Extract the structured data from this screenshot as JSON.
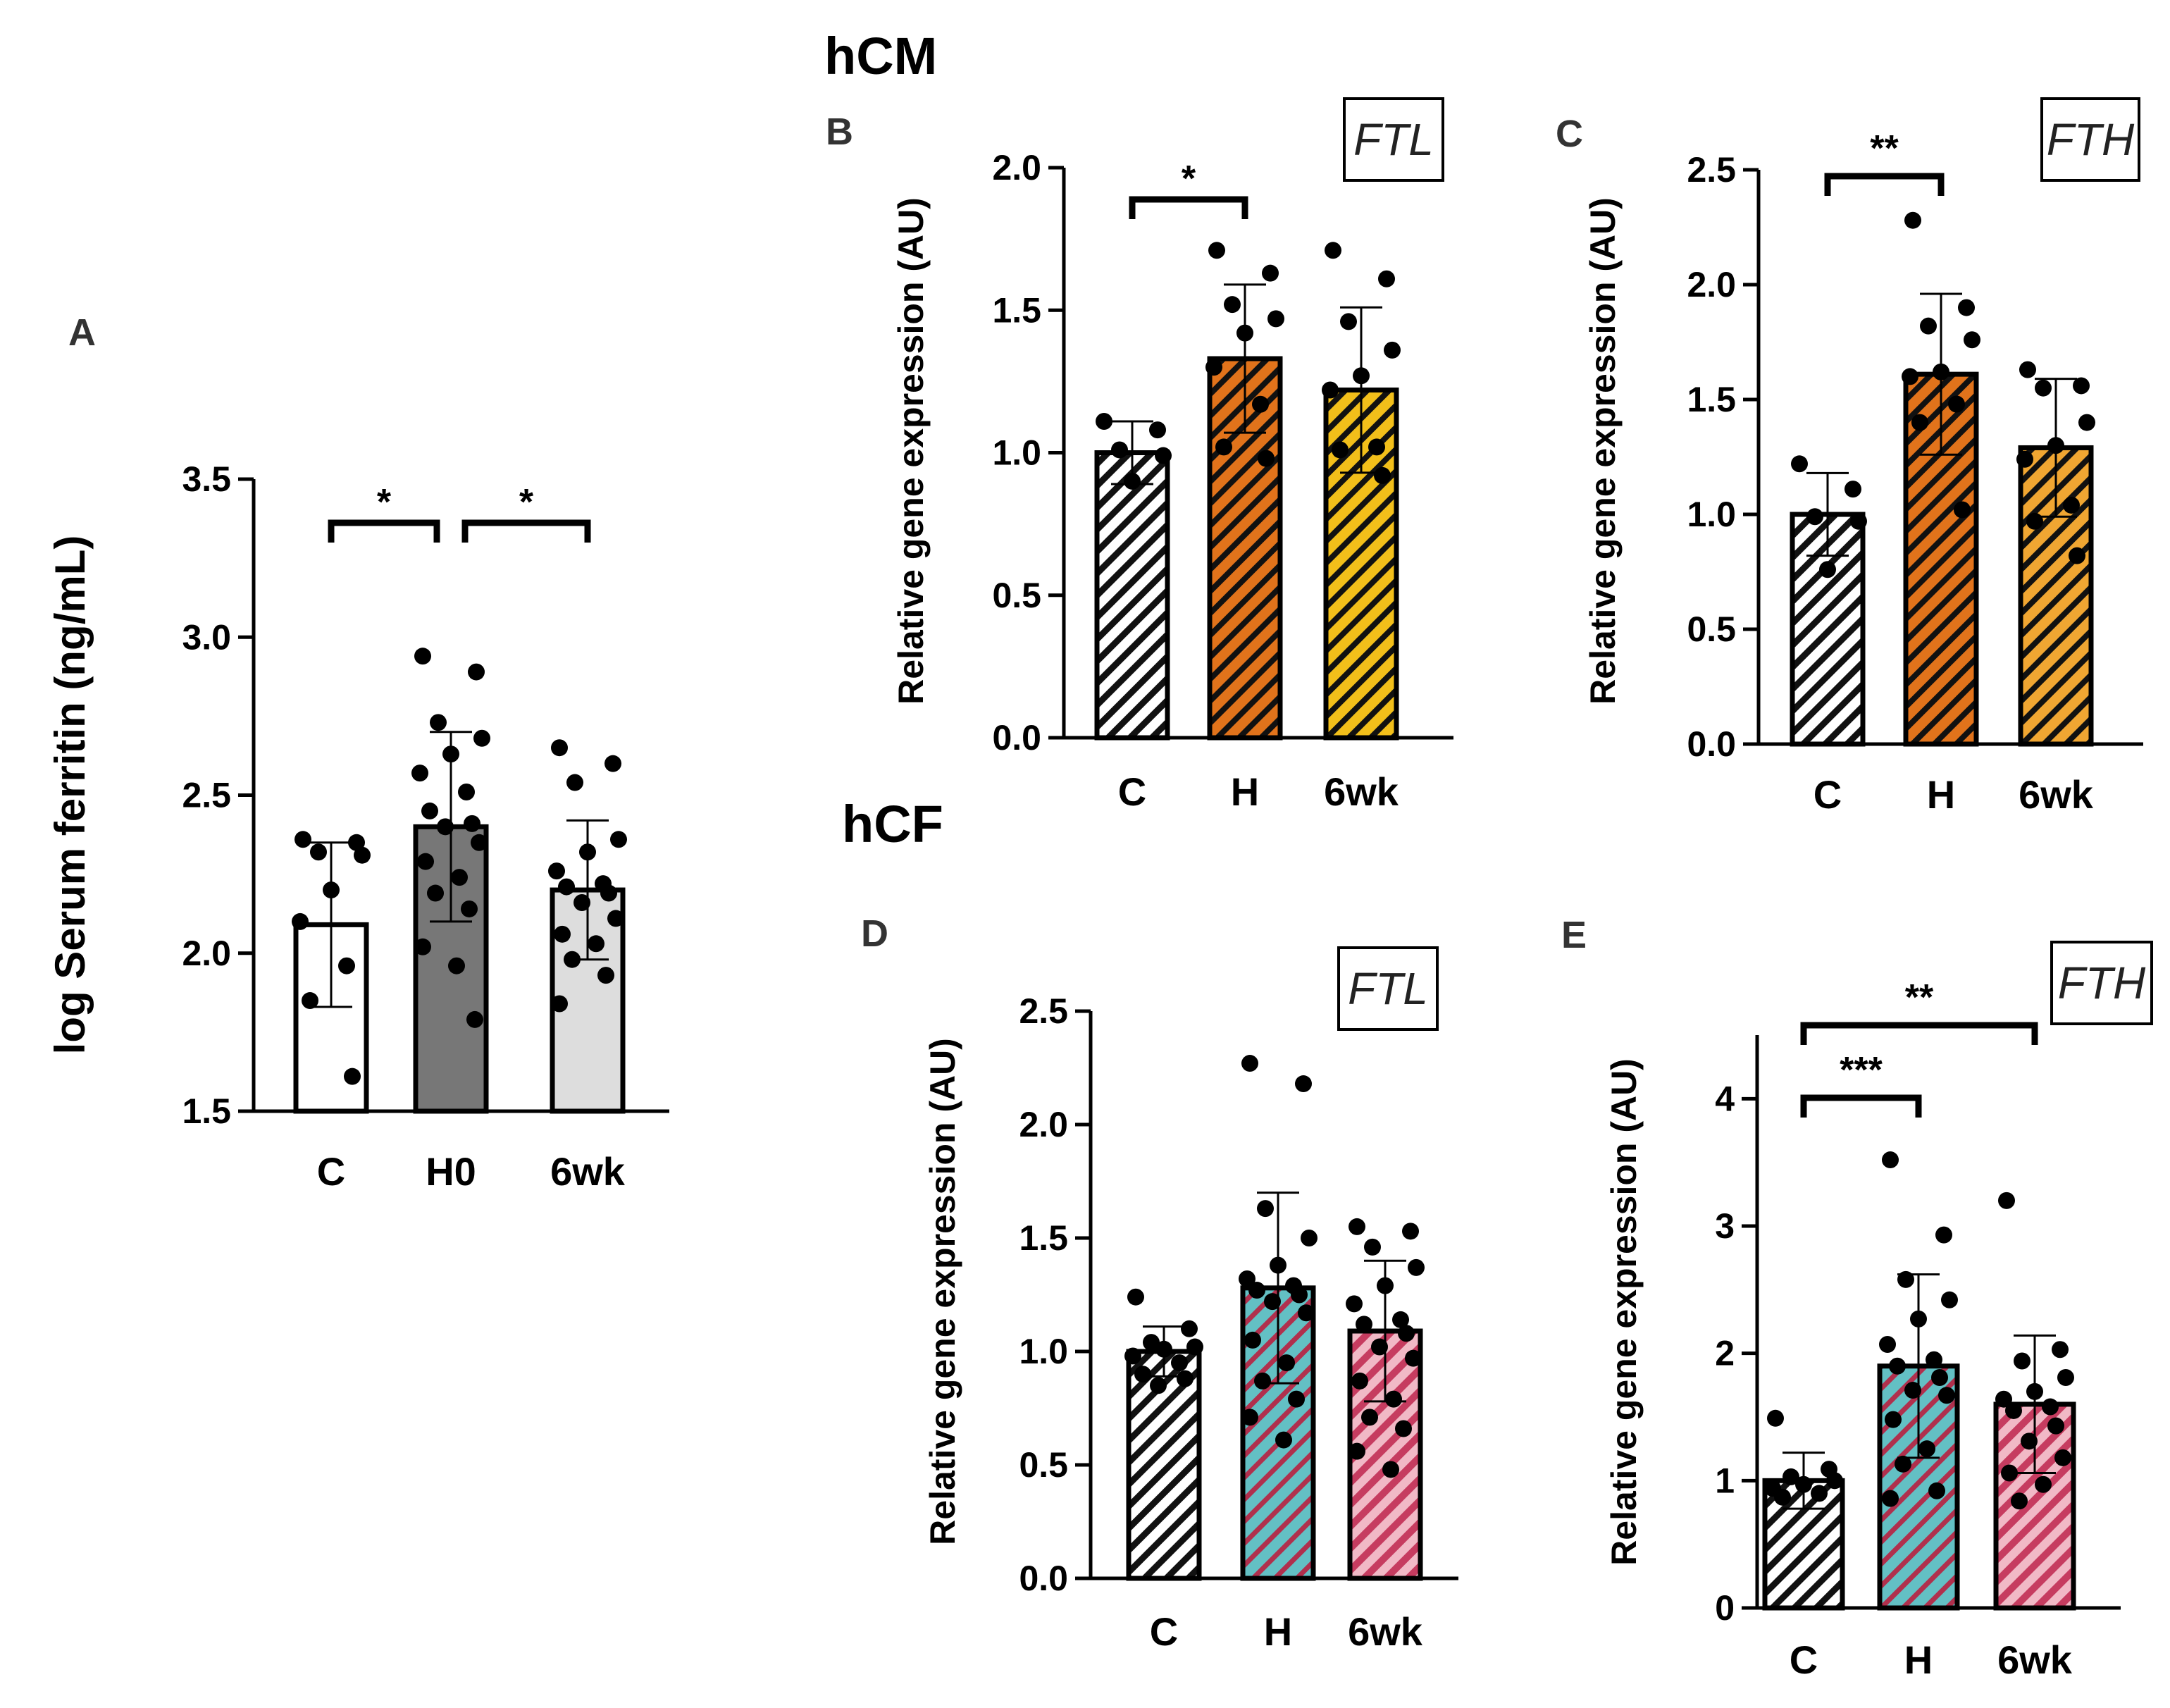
{
  "figure": {
    "group_labels": {
      "hcm": "hCM",
      "hcf": "hCF"
    },
    "colors": {
      "white_bar": "#ffffff",
      "gray_bar": "#777777",
      "lightgray_bar": "#dddddd",
      "hatch_white": "#ffffff",
      "orange": "#e1731b",
      "yellow": "#f2bf1a",
      "teal": "#63c0c4",
      "pink": "#d9557a",
      "black": "#000000"
    }
  },
  "chart_data": [
    {
      "panel": "A",
      "type": "bar",
      "gene": "",
      "title": "",
      "xlabel": "",
      "ylabel": "log Serum ferritin (ng/mL)",
      "categories": [
        "C",
        "H0",
        "6wk"
      ],
      "values": [
        2.09,
        2.4,
        2.2
      ],
      "sd": [
        0.26,
        0.3,
        0.22
      ],
      "ylim": [
        1.5,
        3.5
      ],
      "yticks": [
        1.5,
        2.0,
        2.5,
        3.0,
        3.5
      ],
      "ytick_labels": [
        "1.5",
        "2.0",
        "2.5",
        "3.0",
        "3.5"
      ],
      "grid": false,
      "fills": [
        "white",
        "gray",
        "lightgray"
      ],
      "points": [
        [
          2.36,
          2.35,
          2.32,
          2.31,
          2.2,
          2.1,
          1.96,
          1.85,
          1.61
        ],
        [
          2.94,
          2.89,
          2.73,
          2.68,
          2.63,
          2.57,
          2.51,
          2.45,
          2.41,
          2.4,
          2.35,
          2.29,
          2.24,
          2.19,
          2.14,
          2.02,
          1.96,
          1.79
        ],
        [
          2.65,
          2.6,
          2.54,
          2.36,
          2.32,
          2.26,
          2.22,
          2.21,
          2.19,
          2.16,
          2.11,
          2.06,
          2.03,
          1.98,
          1.93,
          1.84
        ]
      ],
      "significance": [
        {
          "from": 0,
          "to": 1,
          "label": "*"
        },
        {
          "from": 1,
          "to": 2,
          "label": "*"
        }
      ]
    },
    {
      "panel": "B",
      "type": "bar",
      "gene": "FTL",
      "title": "",
      "xlabel": "",
      "ylabel": "Relative gene expression (AU)",
      "categories": [
        "C",
        "H",
        "6wk"
      ],
      "values": [
        1.0,
        1.33,
        1.22
      ],
      "sd": [
        0.11,
        0.26,
        0.29
      ],
      "ylim": [
        0.0,
        2.0
      ],
      "yticks": [
        0.0,
        0.5,
        1.0,
        1.5,
        2.0
      ],
      "ytick_labels": [
        "0.0",
        "0.5",
        "1.0",
        "1.5",
        "2.0"
      ],
      "grid": false,
      "fills": [
        "white",
        "orange",
        "yellow"
      ],
      "points": [
        [
          1.11,
          1.08,
          1.01,
          0.99,
          0.9
        ],
        [
          1.71,
          1.63,
          1.52,
          1.47,
          1.42,
          1.3,
          1.17,
          1.02,
          0.98
        ],
        [
          1.71,
          1.61,
          1.46,
          1.36,
          1.27,
          1.22,
          1.02,
          1.01,
          0.92
        ]
      ],
      "significance": [
        {
          "from": 0,
          "to": 1,
          "label": "*"
        }
      ]
    },
    {
      "panel": "C",
      "type": "bar",
      "gene": "FTH",
      "title": "",
      "xlabel": "",
      "ylabel": "Relative gene expression (AU)",
      "categories": [
        "C",
        "H",
        "6wk"
      ],
      "values": [
        1.0,
        1.61,
        1.29
      ],
      "sd": [
        0.18,
        0.35,
        0.3
      ],
      "ylim": [
        0.0,
        2.5
      ],
      "yticks": [
        0.0,
        0.5,
        1.0,
        1.5,
        2.0,
        2.5
      ],
      "ytick_labels": [
        "0.0",
        "0.5",
        "1.0",
        "1.5",
        "2.0",
        "2.5"
      ],
      "grid": false,
      "fills": [
        "white",
        "orange",
        "orange-light"
      ],
      "points": [
        [
          1.22,
          1.11,
          0.99,
          0.97,
          0.76
        ],
        [
          2.28,
          1.9,
          1.82,
          1.76,
          1.62,
          1.6,
          1.48,
          1.4,
          1.02
        ],
        [
          1.63,
          1.56,
          1.55,
          1.4,
          1.3,
          1.24,
          1.04,
          0.97,
          0.82
        ]
      ],
      "significance": [
        {
          "from": 0,
          "to": 1,
          "label": "**"
        }
      ]
    },
    {
      "panel": "D",
      "type": "bar",
      "gene": "FTL",
      "title": "",
      "xlabel": "",
      "ylabel": "Relative gene expression (AU)",
      "categories": [
        "C",
        "H",
        "6wk"
      ],
      "values": [
        1.0,
        1.28,
        1.09
      ],
      "sd": [
        0.11,
        0.42,
        0.31
      ],
      "ylim": [
        0.0,
        2.5
      ],
      "yticks": [
        0.0,
        0.5,
        1.0,
        1.5,
        2.0,
        2.5
      ],
      "ytick_labels": [
        "0.0",
        "0.5",
        "1.0",
        "1.5",
        "2.0",
        "2.5"
      ],
      "grid": false,
      "fills": [
        "white",
        "teal",
        "pink"
      ],
      "points": [
        [
          1.24,
          1.1,
          1.04,
          1.02,
          1.01,
          0.98,
          0.95,
          0.9,
          0.88,
          0.85
        ],
        [
          2.27,
          2.18,
          1.63,
          1.5,
          1.38,
          1.32,
          1.29,
          1.27,
          1.25,
          1.22,
          1.17,
          1.05,
          0.95,
          0.87,
          0.79,
          0.71,
          0.61
        ],
        [
          1.55,
          1.53,
          1.46,
          1.37,
          1.29,
          1.21,
          1.14,
          1.12,
          1.08,
          1.02,
          0.97,
          0.87,
          0.79,
          0.71,
          0.66,
          0.56,
          0.48
        ]
      ],
      "significance": []
    },
    {
      "panel": "E",
      "type": "bar",
      "gene": "FTH",
      "title": "",
      "xlabel": "",
      "ylabel": "Relative gene expression (AU)",
      "categories": [
        "C",
        "H",
        "6wk"
      ],
      "values": [
        1.0,
        1.9,
        1.6
      ],
      "sd": [
        0.22,
        0.72,
        0.54
      ],
      "ylim": [
        0,
        4.5
      ],
      "yticks": [
        0,
        1,
        2,
        3,
        4
      ],
      "ytick_labels": [
        "0",
        "1",
        "2",
        "3",
        "4"
      ],
      "grid": false,
      "fills": [
        "white",
        "teal",
        "pink"
      ],
      "points": [
        [
          1.49,
          1.09,
          1.03,
          1.0,
          0.97,
          0.94,
          0.9,
          0.87
        ],
        [
          3.52,
          2.93,
          2.58,
          2.42,
          2.27,
          2.07,
          1.95,
          1.9,
          1.81,
          1.71,
          1.67,
          1.48,
          1.25,
          1.13,
          0.92,
          0.86
        ],
        [
          3.2,
          2.03,
          1.94,
          1.81,
          1.7,
          1.64,
          1.58,
          1.55,
          1.43,
          1.31,
          1.18,
          1.06,
          0.97,
          0.84
        ]
      ],
      "significance": [
        {
          "from": 0,
          "to": 2,
          "label": "**"
        },
        {
          "from": 0,
          "to": 1,
          "label": "***"
        }
      ]
    }
  ]
}
